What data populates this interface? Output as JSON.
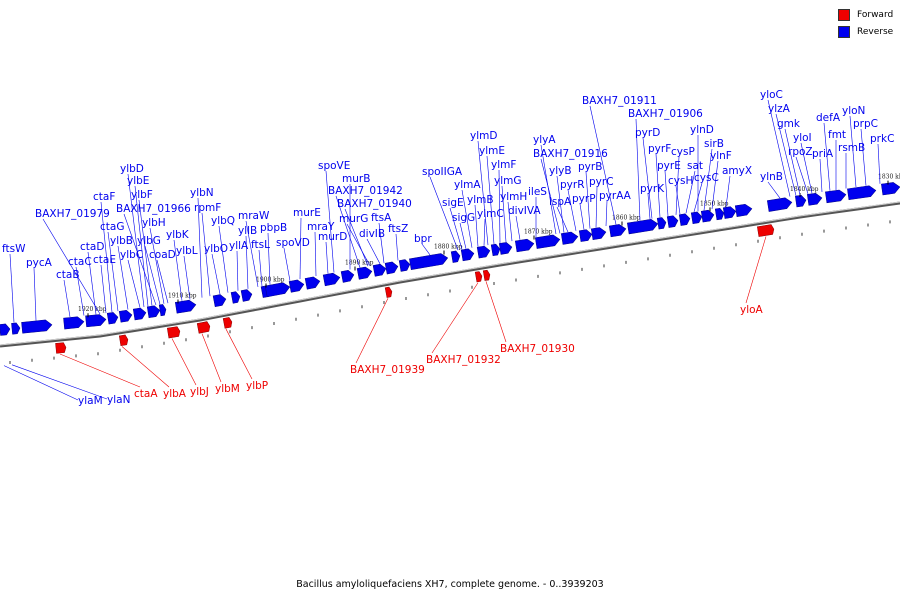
{
  "title": "Bacillus amyloliquefaciens XH7, complete genome. - 0..3939203",
  "legend": [
    {
      "label": "Forward",
      "color": "#ee0000"
    },
    {
      "label": "Reverse",
      "color": "#0000ee"
    }
  ],
  "colors": {
    "forward": "#ee0000",
    "reverse": "#0000ee",
    "leader": "#0000ee",
    "leader_fwd": "#ee0000"
  },
  "ticks": [
    "1920 kbp",
    "1910 kbp",
    "1900 kbp",
    "1890 kbp",
    "1880 kbp",
    "1870 kbp",
    "1860 kbp",
    "1850 kbp",
    "1840 kbp",
    "1830 kbp"
  ],
  "reverse_genes": [
    "ftsW",
    "pycA",
    "ctaB",
    "ctaC",
    "ctaD",
    "ctaE",
    "ctaF",
    "ctaG",
    "ylbB",
    "ylbC",
    "ylbD",
    "ylbE",
    "ylbF",
    "BAXH7_01966",
    "ylbG",
    "ylbH",
    "coaD",
    "BAXH7_01979",
    "ylbK",
    "ylbL",
    "ylbN",
    "rpmF",
    "ylbO",
    "ylbQ",
    "yllA",
    "yllB",
    "mraW",
    "ftsL",
    "pbpB",
    "spoVD",
    "murE",
    "mraY",
    "murD",
    "spoVE",
    "murB",
    "BAXH7_01942",
    "BAXH7_01940",
    "murG",
    "divIB",
    "ftsA",
    "ftsZ",
    "bpr",
    "spoIIGA",
    "sigE",
    "sigG",
    "ylmA",
    "ylmB",
    "ylmC",
    "ylmD",
    "ylmE",
    "ylmF",
    "ylmG",
    "ylmH",
    "divIVA",
    "ileS",
    "ylyA",
    "BAXH7_01916",
    "ylyB",
    "lspA",
    "pyrR",
    "pyrP",
    "pyrB",
    "pyrC",
    "pyrAA",
    "BAXH7_01911",
    "BAXH7_01906",
    "pyrK",
    "pyrD",
    "pyrF",
    "pyrE",
    "cysP",
    "cysH",
    "sat",
    "cysC",
    "ylnD",
    "sirB",
    "ylnF",
    "amyX",
    "ylnB",
    "yloC",
    "ylzA",
    "gmk",
    "rpoZ",
    "yloI",
    "priA",
    "defA",
    "fmt",
    "rsmB",
    "yloN",
    "prpC",
    "prkC",
    "ylaM",
    "ylaN"
  ],
  "forward_genes": [
    "ctaA",
    "ylbA",
    "ylbJ",
    "ylbM",
    "ylbP",
    "BAXH7_01939",
    "BAXH7_01932",
    "BAXH7_01930",
    "yloA"
  ]
}
